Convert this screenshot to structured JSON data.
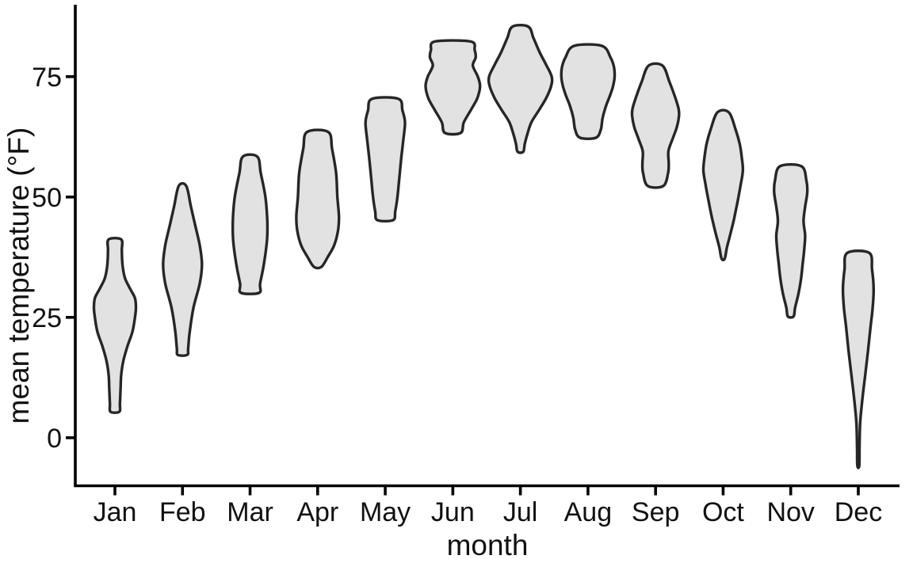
{
  "chart_data": {
    "type": "violin",
    "title": "",
    "xlabel": "month",
    "ylabel": "mean temperature (°F)",
    "categories": [
      "Jan",
      "Feb",
      "Mar",
      "Apr",
      "May",
      "Jun",
      "Jul",
      "Aug",
      "Sep",
      "Oct",
      "Nov",
      "Dec"
    ],
    "y_ticks": [
      0,
      25,
      50,
      75
    ],
    "ylim": [
      -8,
      88
    ],
    "grid": false,
    "legend": "none",
    "styles": {
      "violin_fill": "#e2e2e2",
      "violin_stroke": "#262626",
      "axis_color": "#000000",
      "label_color": "#111111",
      "background": "#ffffff"
    },
    "series": [
      {
        "month": "Jan",
        "min": 5.4,
        "max": 41.2,
        "profile": [
          [
            5.4,
            0.14
          ],
          [
            7,
            0.16
          ],
          [
            10,
            0.18
          ],
          [
            13,
            0.2
          ],
          [
            16,
            0.27
          ],
          [
            19,
            0.4
          ],
          [
            22,
            0.56
          ],
          [
            25,
            0.64
          ],
          [
            27,
            0.67
          ],
          [
            29,
            0.64
          ],
          [
            31,
            0.48
          ],
          [
            33,
            0.33
          ],
          [
            35,
            0.26
          ],
          [
            37,
            0.23
          ],
          [
            39,
            0.22
          ],
          [
            41.2,
            0.2
          ]
        ]
      },
      {
        "month": "Feb",
        "min": 17.2,
        "max": 52.3,
        "profile": [
          [
            17.2,
            0.15
          ],
          [
            18.5,
            0.18
          ],
          [
            22,
            0.23
          ],
          [
            27,
            0.35
          ],
          [
            32,
            0.55
          ],
          [
            36,
            0.62
          ],
          [
            40,
            0.55
          ],
          [
            44,
            0.41
          ],
          [
            48,
            0.27
          ],
          [
            52.3,
            0.12
          ]
        ]
      },
      {
        "month": "Mar",
        "min": 30.1,
        "max": 58.4,
        "profile": [
          [
            30.1,
            0.29
          ],
          [
            32,
            0.32
          ],
          [
            36,
            0.44
          ],
          [
            41,
            0.54
          ],
          [
            45,
            0.55
          ],
          [
            50,
            0.49
          ],
          [
            55,
            0.34
          ],
          [
            58.4,
            0.23
          ]
        ]
      },
      {
        "month": "Apr",
        "min": 35.5,
        "max": 63.5,
        "profile": [
          [
            35.5,
            0.12
          ],
          [
            37.5,
            0.32
          ],
          [
            40,
            0.53
          ],
          [
            43,
            0.65
          ],
          [
            46,
            0.68
          ],
          [
            50,
            0.63
          ],
          [
            55,
            0.59
          ],
          [
            60,
            0.46
          ],
          [
            63.5,
            0.34
          ]
        ]
      },
      {
        "month": "May",
        "min": 45.2,
        "max": 70.4,
        "profile": [
          [
            45.2,
            0.25
          ],
          [
            47,
            0.32
          ],
          [
            50,
            0.39
          ],
          [
            54,
            0.45
          ],
          [
            58,
            0.51
          ],
          [
            62,
            0.58
          ],
          [
            65.5,
            0.63
          ],
          [
            68,
            0.55
          ],
          [
            70.4,
            0.42
          ]
        ]
      },
      {
        "month": "Jun",
        "min": 63.3,
        "max": 82.3,
        "profile": [
          [
            63.3,
            0.25
          ],
          [
            65.5,
            0.35
          ],
          [
            68,
            0.57
          ],
          [
            70.5,
            0.78
          ],
          [
            73,
            0.87
          ],
          [
            75,
            0.8
          ],
          [
            77.3,
            0.64
          ],
          [
            79,
            0.73
          ],
          [
            80.5,
            0.7
          ],
          [
            82.3,
            0.57
          ]
        ]
      },
      {
        "month": "Jul",
        "min": 59.4,
        "max": 85.4,
        "profile": [
          [
            59.4,
            0.09
          ],
          [
            61,
            0.14
          ],
          [
            63,
            0.22
          ],
          [
            65.5,
            0.35
          ],
          [
            68,
            0.59
          ],
          [
            70.5,
            0.82
          ],
          [
            73,
            0.98
          ],
          [
            75,
            1.0
          ],
          [
            77.5,
            0.82
          ],
          [
            80,
            0.62
          ],
          [
            83,
            0.42
          ],
          [
            85.4,
            0.25
          ]
        ]
      },
      {
        "month": "Aug",
        "min": 62.3,
        "max": 81.4,
        "profile": [
          [
            62.3,
            0.25
          ],
          [
            64,
            0.41
          ],
          [
            66.5,
            0.47
          ],
          [
            69,
            0.58
          ],
          [
            71,
            0.7
          ],
          [
            73,
            0.8
          ],
          [
            75,
            0.85
          ],
          [
            77,
            0.83
          ],
          [
            79,
            0.72
          ],
          [
            81.4,
            0.44
          ]
        ]
      },
      {
        "month": "Sep",
        "min": 52.3,
        "max": 77.3,
        "profile": [
          [
            52.3,
            0.25
          ],
          [
            55,
            0.4
          ],
          [
            57,
            0.42
          ],
          [
            59.5,
            0.41
          ],
          [
            62,
            0.54
          ],
          [
            64.5,
            0.68
          ],
          [
            67,
            0.75
          ],
          [
            68.5,
            0.73
          ],
          [
            71,
            0.61
          ],
          [
            74,
            0.44
          ],
          [
            77.3,
            0.22
          ]
        ]
      },
      {
        "month": "Oct",
        "min": 37.2,
        "max": 67.6,
        "profile": [
          [
            37.2,
            0.05
          ],
          [
            39.5,
            0.12
          ],
          [
            42,
            0.22
          ],
          [
            45.5,
            0.35
          ],
          [
            49,
            0.46
          ],
          [
            52.5,
            0.56
          ],
          [
            55.5,
            0.63
          ],
          [
            58,
            0.6
          ],
          [
            61,
            0.53
          ],
          [
            64,
            0.4
          ],
          [
            67.6,
            0.18
          ]
        ]
      },
      {
        "month": "Nov",
        "min": 25.2,
        "max": 56.4,
        "profile": [
          [
            25.2,
            0.09
          ],
          [
            27,
            0.14
          ],
          [
            30,
            0.25
          ],
          [
            33,
            0.33
          ],
          [
            36,
            0.38
          ],
          [
            39,
            0.43
          ],
          [
            42,
            0.46
          ],
          [
            45,
            0.41
          ],
          [
            48,
            0.46
          ],
          [
            51,
            0.53
          ],
          [
            53.5,
            0.5
          ],
          [
            56.4,
            0.34
          ]
        ]
      },
      {
        "month": "Dec",
        "min": -5.8,
        "max": 38.4,
        "profile": [
          [
            -5.8,
            0.03
          ],
          [
            -2,
            0.04
          ],
          [
            3,
            0.06
          ],
          [
            8,
            0.13
          ],
          [
            13,
            0.22
          ],
          [
            18,
            0.31
          ],
          [
            23,
            0.39
          ],
          [
            27,
            0.46
          ],
          [
            31,
            0.49
          ],
          [
            35,
            0.44
          ],
          [
            38.4,
            0.35
          ]
        ]
      }
    ]
  }
}
